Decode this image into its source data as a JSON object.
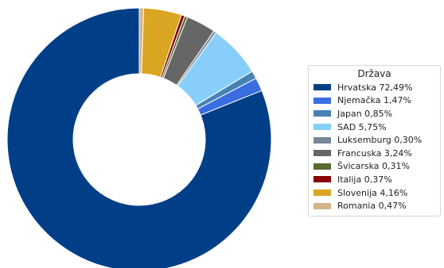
{
  "chart_data": {
    "type": "pie",
    "style": "donut",
    "legend_title": "Država",
    "legend_position": "right",
    "slices": [
      {
        "label": "Hrvatska",
        "value": 72.49,
        "display": "Hrvatska 72,49%",
        "color": "#003f87"
      },
      {
        "label": "Njemačka",
        "value": 1.47,
        "display": "Njemačka 1,47%",
        "color": "#3a6de0"
      },
      {
        "label": "Japan",
        "value": 0.85,
        "display": "Japan 0,85%",
        "color": "#4682b4"
      },
      {
        "label": "SAD",
        "value": 5.75,
        "display": "SAD 5,75%",
        "color": "#87cefa"
      },
      {
        "label": "Luksemburg",
        "value": 0.3,
        "display": "Luksemburg 0,30%",
        "color": "#778899"
      },
      {
        "label": "Francuska",
        "value": 3.24,
        "display": "Francuska 3,24%",
        "color": "#666666"
      },
      {
        "label": "Švicarska",
        "value": 0.31,
        "display": "Švicarska 0,31%",
        "color": "#556b2f"
      },
      {
        "label": "Italija",
        "value": 0.37,
        "display": "Italija 0,37%",
        "color": "#8b0000"
      },
      {
        "label": "Slovenija",
        "value": 4.16,
        "display": "Slovenija 4,16%",
        "color": "#daa520"
      },
      {
        "label": "Romania",
        "value": 0.47,
        "display": "Romania 0,47%",
        "color": "#d2b48c"
      }
    ]
  }
}
